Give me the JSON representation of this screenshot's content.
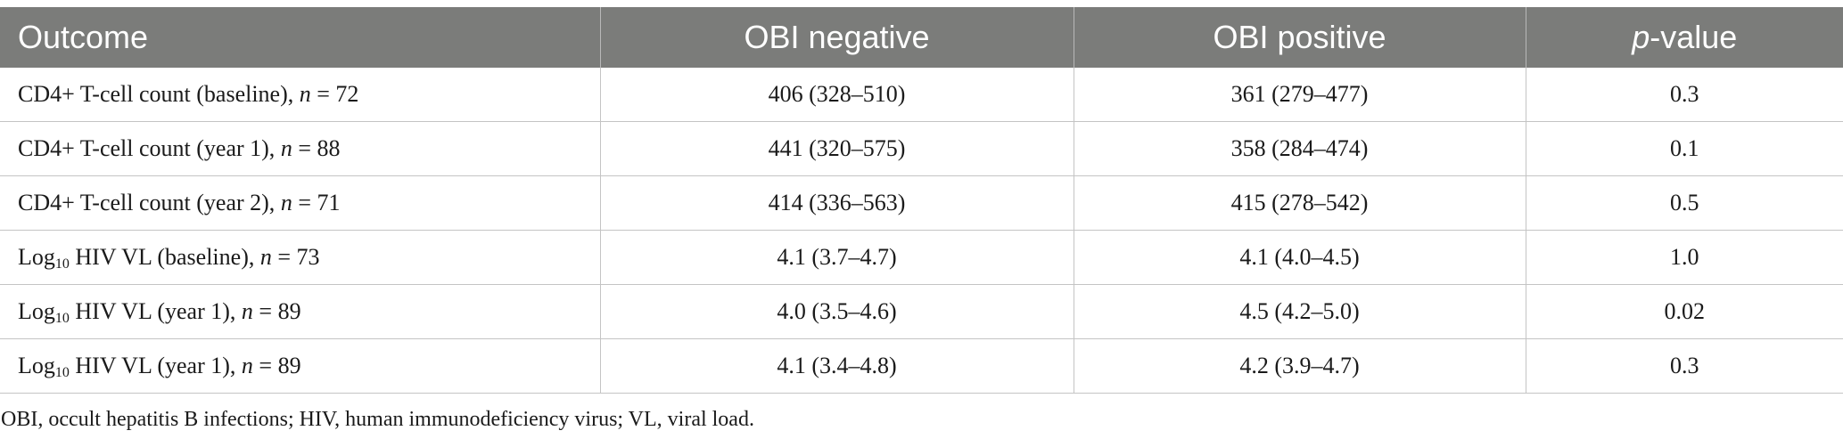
{
  "table": {
    "headers": {
      "outcome": "Outcome",
      "obi_negative": "OBI negative",
      "obi_positive": "OBI positive",
      "p_value_italic": "p",
      "p_value_rest": "-value"
    },
    "rows": [
      {
        "label_pre": "CD4+ T-cell count (baseline), ",
        "label_sub": "",
        "label_post": "",
        "n_var": "n",
        "n_eq": " = 72",
        "neg": "406 (328–510)",
        "pos": "361 (279–477)",
        "p": "0.3"
      },
      {
        "label_pre": "CD4+ T-cell count (year 1), ",
        "label_sub": "",
        "label_post": "",
        "n_var": "n",
        "n_eq": " = 88",
        "neg": "441 (320–575)",
        "pos": "358 (284–474)",
        "p": "0.1"
      },
      {
        "label_pre": "CD4+ T-cell count (year 2), ",
        "label_sub": "",
        "label_post": "",
        "n_var": "n",
        "n_eq": " = 71",
        "neg": "414 (336–563)",
        "pos": "415 (278–542)",
        "p": "0.5"
      },
      {
        "label_pre": "Log",
        "label_sub": "10",
        "label_post": " HIV VL (baseline), ",
        "n_var": "n",
        "n_eq": " = 73",
        "neg": "4.1 (3.7–4.7)",
        "pos": "4.1 (4.0–4.5)",
        "p": "1.0"
      },
      {
        "label_pre": "Log",
        "label_sub": "10",
        "label_post": " HIV VL (year 1), ",
        "n_var": "n",
        "n_eq": " = 89",
        "neg": "4.0 (3.5–4.6)",
        "pos": "4.5 (4.2–5.0)",
        "p": "0.02"
      },
      {
        "label_pre": "Log",
        "label_sub": "10",
        "label_post": " HIV VL (year 1), ",
        "n_var": "n",
        "n_eq": " = 89",
        "neg": "4.1 (3.4–4.8)",
        "pos": "4.2 (3.9–4.7)",
        "p": "0.3"
      }
    ]
  },
  "footnote": "OBI, occult hepatitis B infections; HIV, human immunodeficiency virus; VL, viral load.",
  "colors": {
    "header_bg": "#7b7c7a",
    "header_text": "#ffffff",
    "grid": "#c4c4c4"
  }
}
